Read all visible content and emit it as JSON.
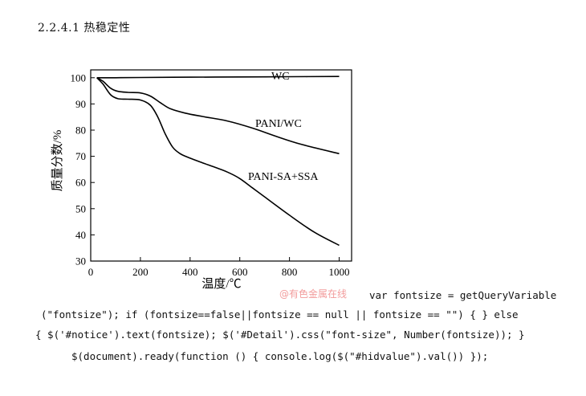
{
  "heading": "2.2.4.1 热稳定性",
  "chart_data": {
    "type": "line",
    "xlabel": "温度/℃",
    "ylabel": "质量分数/%",
    "xlim": [
      0,
      1050
    ],
    "ylim": [
      30,
      103
    ],
    "xticks": [
      0,
      200,
      400,
      600,
      800,
      1000
    ],
    "yticks": [
      30,
      40,
      50,
      60,
      70,
      80,
      90,
      100
    ],
    "grid": false,
    "series": [
      {
        "name": "WC",
        "x": [
          25,
          100,
          200,
          400,
          600,
          800,
          1000
        ],
        "y": [
          100,
          100,
          100.1,
          100.2,
          100.3,
          100.4,
          100.5
        ]
      },
      {
        "name": "PANI/WC",
        "x": [
          25,
          50,
          80,
          110,
          150,
          200,
          240,
          280,
          320,
          380,
          450,
          550,
          650,
          750,
          850,
          1000
        ],
        "y": [
          100,
          98.6,
          96,
          94.8,
          94.4,
          94.2,
          93,
          90.5,
          88.2,
          86.5,
          85.2,
          83.5,
          80.8,
          77.5,
          74.5,
          71
        ]
      },
      {
        "name": "PANI-SA+SSA",
        "x": [
          25,
          50,
          80,
          110,
          150,
          200,
          240,
          270,
          300,
          330,
          360,
          400,
          450,
          500,
          550,
          600,
          650,
          700,
          800,
          900,
          1000
        ],
        "y": [
          100,
          97.5,
          93.5,
          92,
          91.8,
          91.5,
          89.5,
          85,
          78.5,
          73.5,
          71,
          69.3,
          67.5,
          65.8,
          64,
          61.5,
          58,
          54.5,
          47.5,
          41,
          36
        ]
      }
    ]
  },
  "series_labels": {
    "wc": "WC",
    "pani_wc": "PANI/WC",
    "pani_sa": "PANI-SA+SSA"
  },
  "watermark": "@有色金属在线",
  "code_lines": [
    "var fontsize = getQueryVariable",
    "(\"fontsize\"); if (fontsize==false||fontsize == null || fontsize == \"\") { } else",
    "{ $('#notice').text(fontsize); $('#Detail').css(\"font-size\", Number(fontsize)); }",
    "$(document).ready(function () { console.log($(\"#hidvalue\").val()) });"
  ]
}
